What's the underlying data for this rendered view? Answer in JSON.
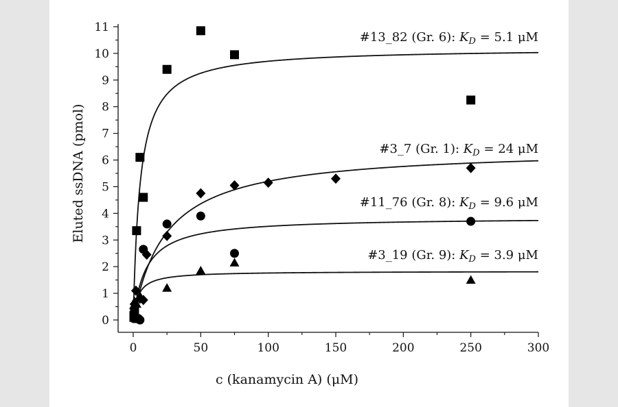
{
  "chart_data": {
    "type": "scatter",
    "xlabel": "c (kanamycin A) (μM)",
    "ylabel": "Eluted ssDNA (pmol)",
    "xlim": [
      0,
      300
    ],
    "ylim": [
      0,
      11
    ],
    "x_ticks": [
      "0",
      "50",
      "100",
      "150",
      "200",
      "250",
      "300"
    ],
    "y_ticks": [
      "0",
      "1",
      "2",
      "3",
      "4",
      "5",
      "6",
      "7",
      "8",
      "9",
      "10",
      "11"
    ],
    "grid": false,
    "legend": "none",
    "series": [
      {
        "marker": "square",
        "label": "#13_82 (Gr. 6): K_D = 5.1 μM",
        "label_parts": {
          "prefix": "#13_82 (Gr. 6): ",
          "k": "K",
          "sub": "D",
          "suffix": " = 5.1 μM"
        },
        "fit": {
          "bmax": 10.2,
          "kd": 5.1
        },
        "points": [
          [
            0.5,
            0.1
          ],
          [
            1,
            0.3
          ],
          [
            2.5,
            3.35
          ],
          [
            5,
            6.1
          ],
          [
            7.5,
            4.6
          ],
          [
            25,
            9.4
          ],
          [
            50,
            10.85
          ],
          [
            75,
            9.95
          ],
          [
            250,
            8.25
          ]
        ]
      },
      {
        "marker": "diamond",
        "label": "#3_7 (Gr. 1): K_D = 24 μM",
        "label_parts": {
          "prefix": "#3_7 (Gr. 1): ",
          "k": "K",
          "sub": "D",
          "suffix": " = 24 μM"
        },
        "fit": {
          "bmax": 6.45,
          "kd": 24
        },
        "points": [
          [
            0.5,
            0.3
          ],
          [
            1,
            0.6
          ],
          [
            2,
            1.1
          ],
          [
            5,
            0.8
          ],
          [
            7.5,
            0.75
          ],
          [
            10,
            2.45
          ],
          [
            25,
            3.15
          ],
          [
            50,
            4.75
          ],
          [
            75,
            5.05
          ],
          [
            100,
            5.15
          ],
          [
            150,
            5.3
          ],
          [
            250,
            5.7
          ]
        ]
      },
      {
        "marker": "circle",
        "label": "#11_76 (Gr. 8): K_D = 9.6 μM",
        "label_parts": {
          "prefix": "#11_76 (Gr. 8): ",
          "k": "K",
          "sub": "D",
          "suffix": " = 9.6 μM"
        },
        "fit": {
          "bmax": 3.85,
          "kd": 9.6
        },
        "points": [
          [
            0.5,
            0.05
          ],
          [
            1,
            0.1
          ],
          [
            2,
            0.05
          ],
          [
            4,
            0.05
          ],
          [
            5,
            0.0
          ],
          [
            7.5,
            2.65
          ],
          [
            25,
            3.6
          ],
          [
            50,
            3.9
          ],
          [
            75,
            2.5
          ],
          [
            250,
            3.7
          ]
        ]
      },
      {
        "marker": "triangle",
        "label": "#3_19 (Gr. 9): K_D = 3.9 μM",
        "label_parts": {
          "prefix": "#3_19 (Gr. 9): ",
          "k": "K",
          "sub": "D",
          "suffix": " = 3.9 μM"
        },
        "fit": {
          "bmax": 1.83,
          "kd": 3.9
        },
        "points": [
          [
            0.5,
            0.55
          ],
          [
            1,
            0.7
          ],
          [
            2.5,
            0.6
          ],
          [
            5,
            0.9
          ],
          [
            25,
            1.2
          ],
          [
            50,
            1.85
          ],
          [
            75,
            2.15
          ],
          [
            250,
            1.5
          ]
        ]
      }
    ]
  }
}
